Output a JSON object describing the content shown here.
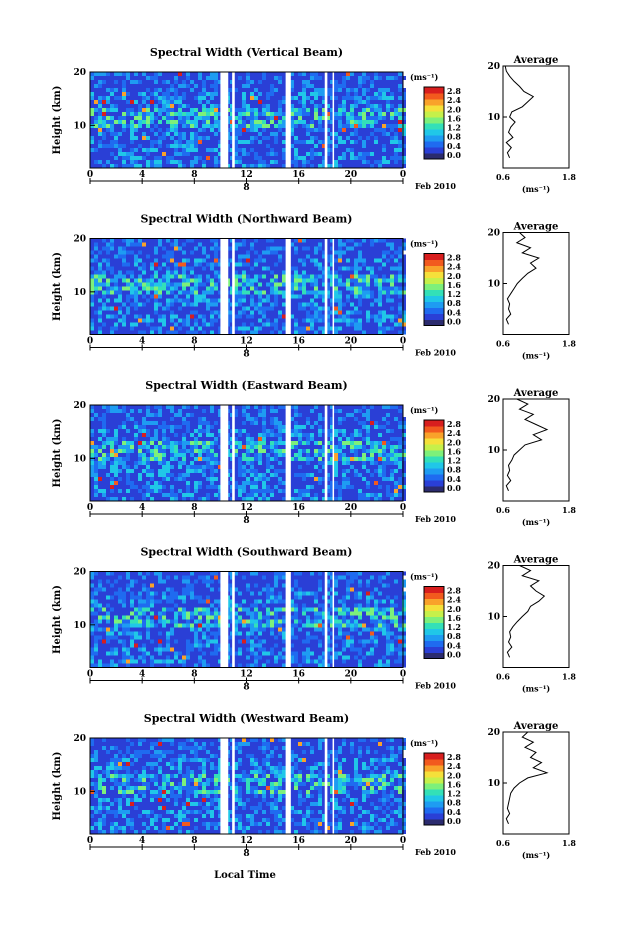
{
  "figure": {
    "x_axis_label": "Local Time",
    "date_label": "Feb 2010",
    "day_label": "8",
    "colorbar_unit": "(ms⁻¹)",
    "avg_title": "Average",
    "avg_unit": "(ms⁻¹)",
    "y_label": "Height (km)",
    "colormap": [
      "#2b2b6e",
      "#2a3fd6",
      "#1f6bf0",
      "#1e9cf2",
      "#20c7e8",
      "#33e0b8",
      "#7df07a",
      "#c6f04a",
      "#f5e03a",
      "#f9a22a",
      "#f25a1e",
      "#d81e1e"
    ]
  },
  "chart_data": [
    {
      "type": "heatmap",
      "title": "Spectral Width (Vertical Beam)",
      "xlabel": "Local Time",
      "ylabel": "Height (km)",
      "xlim": [
        0,
        24
      ],
      "ylim": [
        2,
        20
      ],
      "x_ticks": [
        "0",
        "4",
        "8",
        "12",
        "16",
        "20",
        "0"
      ],
      "y_ticks": [
        "10",
        "20"
      ],
      "colorbar": {
        "label": "(ms⁻¹)",
        "ticks": [
          "2.8",
          "2.4",
          "2.0",
          "1.6",
          "1.2",
          "0.8",
          "0.4",
          "0.0"
        ],
        "range": [
          0,
          2.8
        ]
      },
      "data_gaps_hours": [
        [
          10.0,
          10.6
        ],
        [
          10.9,
          11.1
        ],
        [
          15.0,
          15.4
        ],
        [
          18.0,
          18.2
        ],
        [
          18.6,
          18.7
        ]
      ],
      "average_profile": {
        "title": "Average",
        "xlabel": "(ms⁻¹)",
        "x_ticks": [
          "0.6",
          "1.8"
        ],
        "xlim": [
          0.6,
          1.8
        ],
        "y_ticks": [
          "10",
          "20"
        ],
        "ylim": [
          0,
          20
        ],
        "height_km": [
          2,
          3,
          4,
          5,
          6,
          7,
          8,
          9,
          10,
          11,
          12,
          13,
          14,
          15,
          16,
          17,
          18,
          19,
          20
        ],
        "width_ms": [
          0.72,
          0.68,
          0.75,
          0.66,
          0.78,
          0.7,
          0.74,
          0.82,
          0.72,
          0.76,
          0.95,
          1.05,
          1.15,
          0.98,
          0.9,
          0.8,
          0.72,
          0.66,
          0.64
        ]
      }
    },
    {
      "type": "heatmap",
      "title": "Spectral Width (Northward Beam)",
      "xlabel": "Local Time",
      "ylabel": "Height (km)",
      "xlim": [
        0,
        24
      ],
      "ylim": [
        2,
        20
      ],
      "x_ticks": [
        "0",
        "4",
        "8",
        "12",
        "16",
        "20",
        "0"
      ],
      "y_ticks": [
        "10",
        "20"
      ],
      "colorbar": {
        "label": "(ms⁻¹)",
        "ticks": [
          "2.8",
          "2.4",
          "2.0",
          "1.6",
          "1.2",
          "0.8",
          "0.4",
          "0.0"
        ],
        "range": [
          0,
          2.8
        ]
      },
      "data_gaps_hours": [
        [
          10.0,
          10.6
        ],
        [
          10.9,
          11.1
        ],
        [
          15.0,
          15.4
        ],
        [
          18.0,
          18.2
        ],
        [
          18.6,
          18.7
        ]
      ],
      "average_profile": {
        "title": "Average",
        "xlabel": "(ms⁻¹)",
        "x_ticks": [
          "0.6",
          "1.8"
        ],
        "xlim": [
          0.6,
          1.8
        ],
        "y_ticks": [
          "10",
          "20"
        ],
        "ylim": [
          0,
          20
        ],
        "height_km": [
          2,
          3,
          4,
          5,
          6,
          7,
          8,
          9,
          10,
          11,
          12,
          13,
          14,
          15,
          16,
          17,
          18,
          19,
          20
        ],
        "width_ms": [
          0.7,
          0.66,
          0.74,
          0.7,
          0.72,
          0.68,
          0.74,
          0.8,
          0.86,
          0.95,
          1.05,
          1.2,
          1.1,
          1.25,
          0.95,
          1.1,
          0.85,
          1.0,
          0.9
        ]
      }
    },
    {
      "type": "heatmap",
      "title": "Spectral Width (Eastward Beam)",
      "xlabel": "Local Time",
      "ylabel": "Height (km)",
      "xlim": [
        0,
        24
      ],
      "ylim": [
        2,
        20
      ],
      "x_ticks": [
        "0",
        "4",
        "8",
        "12",
        "16",
        "20",
        "0"
      ],
      "y_ticks": [
        "10",
        "20"
      ],
      "colorbar": {
        "label": "(ms⁻¹)",
        "ticks": [
          "2.8",
          "2.4",
          "2.0",
          "1.6",
          "1.2",
          "0.8",
          "0.4",
          "0.0"
        ],
        "range": [
          0,
          2.8
        ]
      },
      "data_gaps_hours": [
        [
          10.0,
          10.6
        ],
        [
          10.9,
          11.1
        ],
        [
          15.0,
          15.4
        ],
        [
          18.0,
          18.2
        ],
        [
          18.6,
          18.7
        ]
      ],
      "average_profile": {
        "title": "Average",
        "xlabel": "(ms⁻¹)",
        "x_ticks": [
          "0.6",
          "1.8"
        ],
        "xlim": [
          0.6,
          1.8
        ],
        "y_ticks": [
          "10",
          "20"
        ],
        "ylim": [
          0,
          20
        ],
        "height_km": [
          2,
          3,
          4,
          5,
          6,
          7,
          8,
          9,
          10,
          11,
          12,
          13,
          14,
          15,
          16,
          17,
          18,
          19,
          20
        ],
        "width_ms": [
          0.7,
          0.66,
          0.74,
          0.68,
          0.72,
          0.7,
          0.76,
          0.8,
          0.9,
          1.0,
          1.3,
          1.15,
          1.4,
          1.2,
          1.0,
          1.15,
          0.9,
          1.05,
          0.85
        ]
      }
    },
    {
      "type": "heatmap",
      "title": "Spectral Width (Southward Beam)",
      "xlabel": "Local Time",
      "ylabel": "Height (km)",
      "xlim": [
        0,
        24
      ],
      "ylim": [
        2,
        20
      ],
      "x_ticks": [
        "0",
        "4",
        "8",
        "12",
        "16",
        "20",
        "0"
      ],
      "y_ticks": [
        "10",
        "20"
      ],
      "colorbar": {
        "label": "(ms⁻¹)",
        "ticks": [
          "2.8",
          "2.4",
          "2.0",
          "1.6",
          "1.2",
          "0.8",
          "0.4",
          "0.0"
        ],
        "range": [
          0,
          2.8
        ]
      },
      "data_gaps_hours": [
        [
          10.0,
          10.6
        ],
        [
          10.9,
          11.1
        ],
        [
          15.0,
          15.4
        ],
        [
          18.0,
          18.2
        ],
        [
          18.6,
          18.7
        ]
      ],
      "average_profile": {
        "title": "Average",
        "xlabel": "(ms⁻¹)",
        "x_ticks": [
          "0.6",
          "1.8"
        ],
        "xlim": [
          0.6,
          1.8
        ],
        "y_ticks": [
          "10",
          "20"
        ],
        "ylim": [
          0,
          20
        ],
        "height_km": [
          2,
          3,
          4,
          5,
          6,
          7,
          8,
          9,
          10,
          11,
          12,
          13,
          14,
          15,
          16,
          17,
          18,
          19,
          20
        ],
        "width_ms": [
          0.72,
          0.68,
          0.76,
          0.7,
          0.74,
          0.72,
          0.78,
          0.86,
          0.95,
          1.05,
          1.1,
          1.25,
          1.35,
          1.2,
          1.1,
          1.25,
          0.95,
          1.1,
          0.9
        ]
      }
    },
    {
      "type": "heatmap",
      "title": "Spectral Width (Westward Beam)",
      "xlabel": "Local Time",
      "ylabel": "Height (km)",
      "xlim": [
        0,
        24
      ],
      "ylim": [
        2,
        20
      ],
      "x_ticks": [
        "0",
        "4",
        "8",
        "12",
        "16",
        "20",
        "0"
      ],
      "y_ticks": [
        "10",
        "20"
      ],
      "colorbar": {
        "label": "(ms⁻¹)",
        "ticks": [
          "2.8",
          "2.4",
          "2.0",
          "1.6",
          "1.2",
          "0.8",
          "0.4",
          "0.0"
        ],
        "range": [
          0,
          2.8
        ]
      },
      "data_gaps_hours": [
        [
          10.0,
          10.6
        ],
        [
          10.9,
          11.1
        ],
        [
          15.0,
          15.4
        ],
        [
          18.0,
          18.2
        ],
        [
          18.6,
          18.7
        ]
      ],
      "average_profile": {
        "title": "Average",
        "xlabel": "(ms⁻¹)",
        "x_ticks": [
          "0.6",
          "1.8"
        ],
        "xlim": [
          0.6,
          1.8
        ],
        "y_ticks": [
          "10",
          "20"
        ],
        "ylim": [
          0,
          20
        ],
        "height_km": [
          2,
          3,
          4,
          5,
          6,
          7,
          8,
          9,
          10,
          11,
          12,
          13,
          14,
          15,
          16,
          17,
          18,
          19,
          20
        ],
        "width_ms": [
          0.7,
          0.66,
          0.72,
          0.68,
          0.7,
          0.72,
          0.74,
          0.8,
          0.9,
          1.05,
          1.4,
          1.15,
          1.3,
          1.1,
          1.2,
          1.0,
          1.15,
          0.95,
          1.05
        ]
      }
    }
  ]
}
